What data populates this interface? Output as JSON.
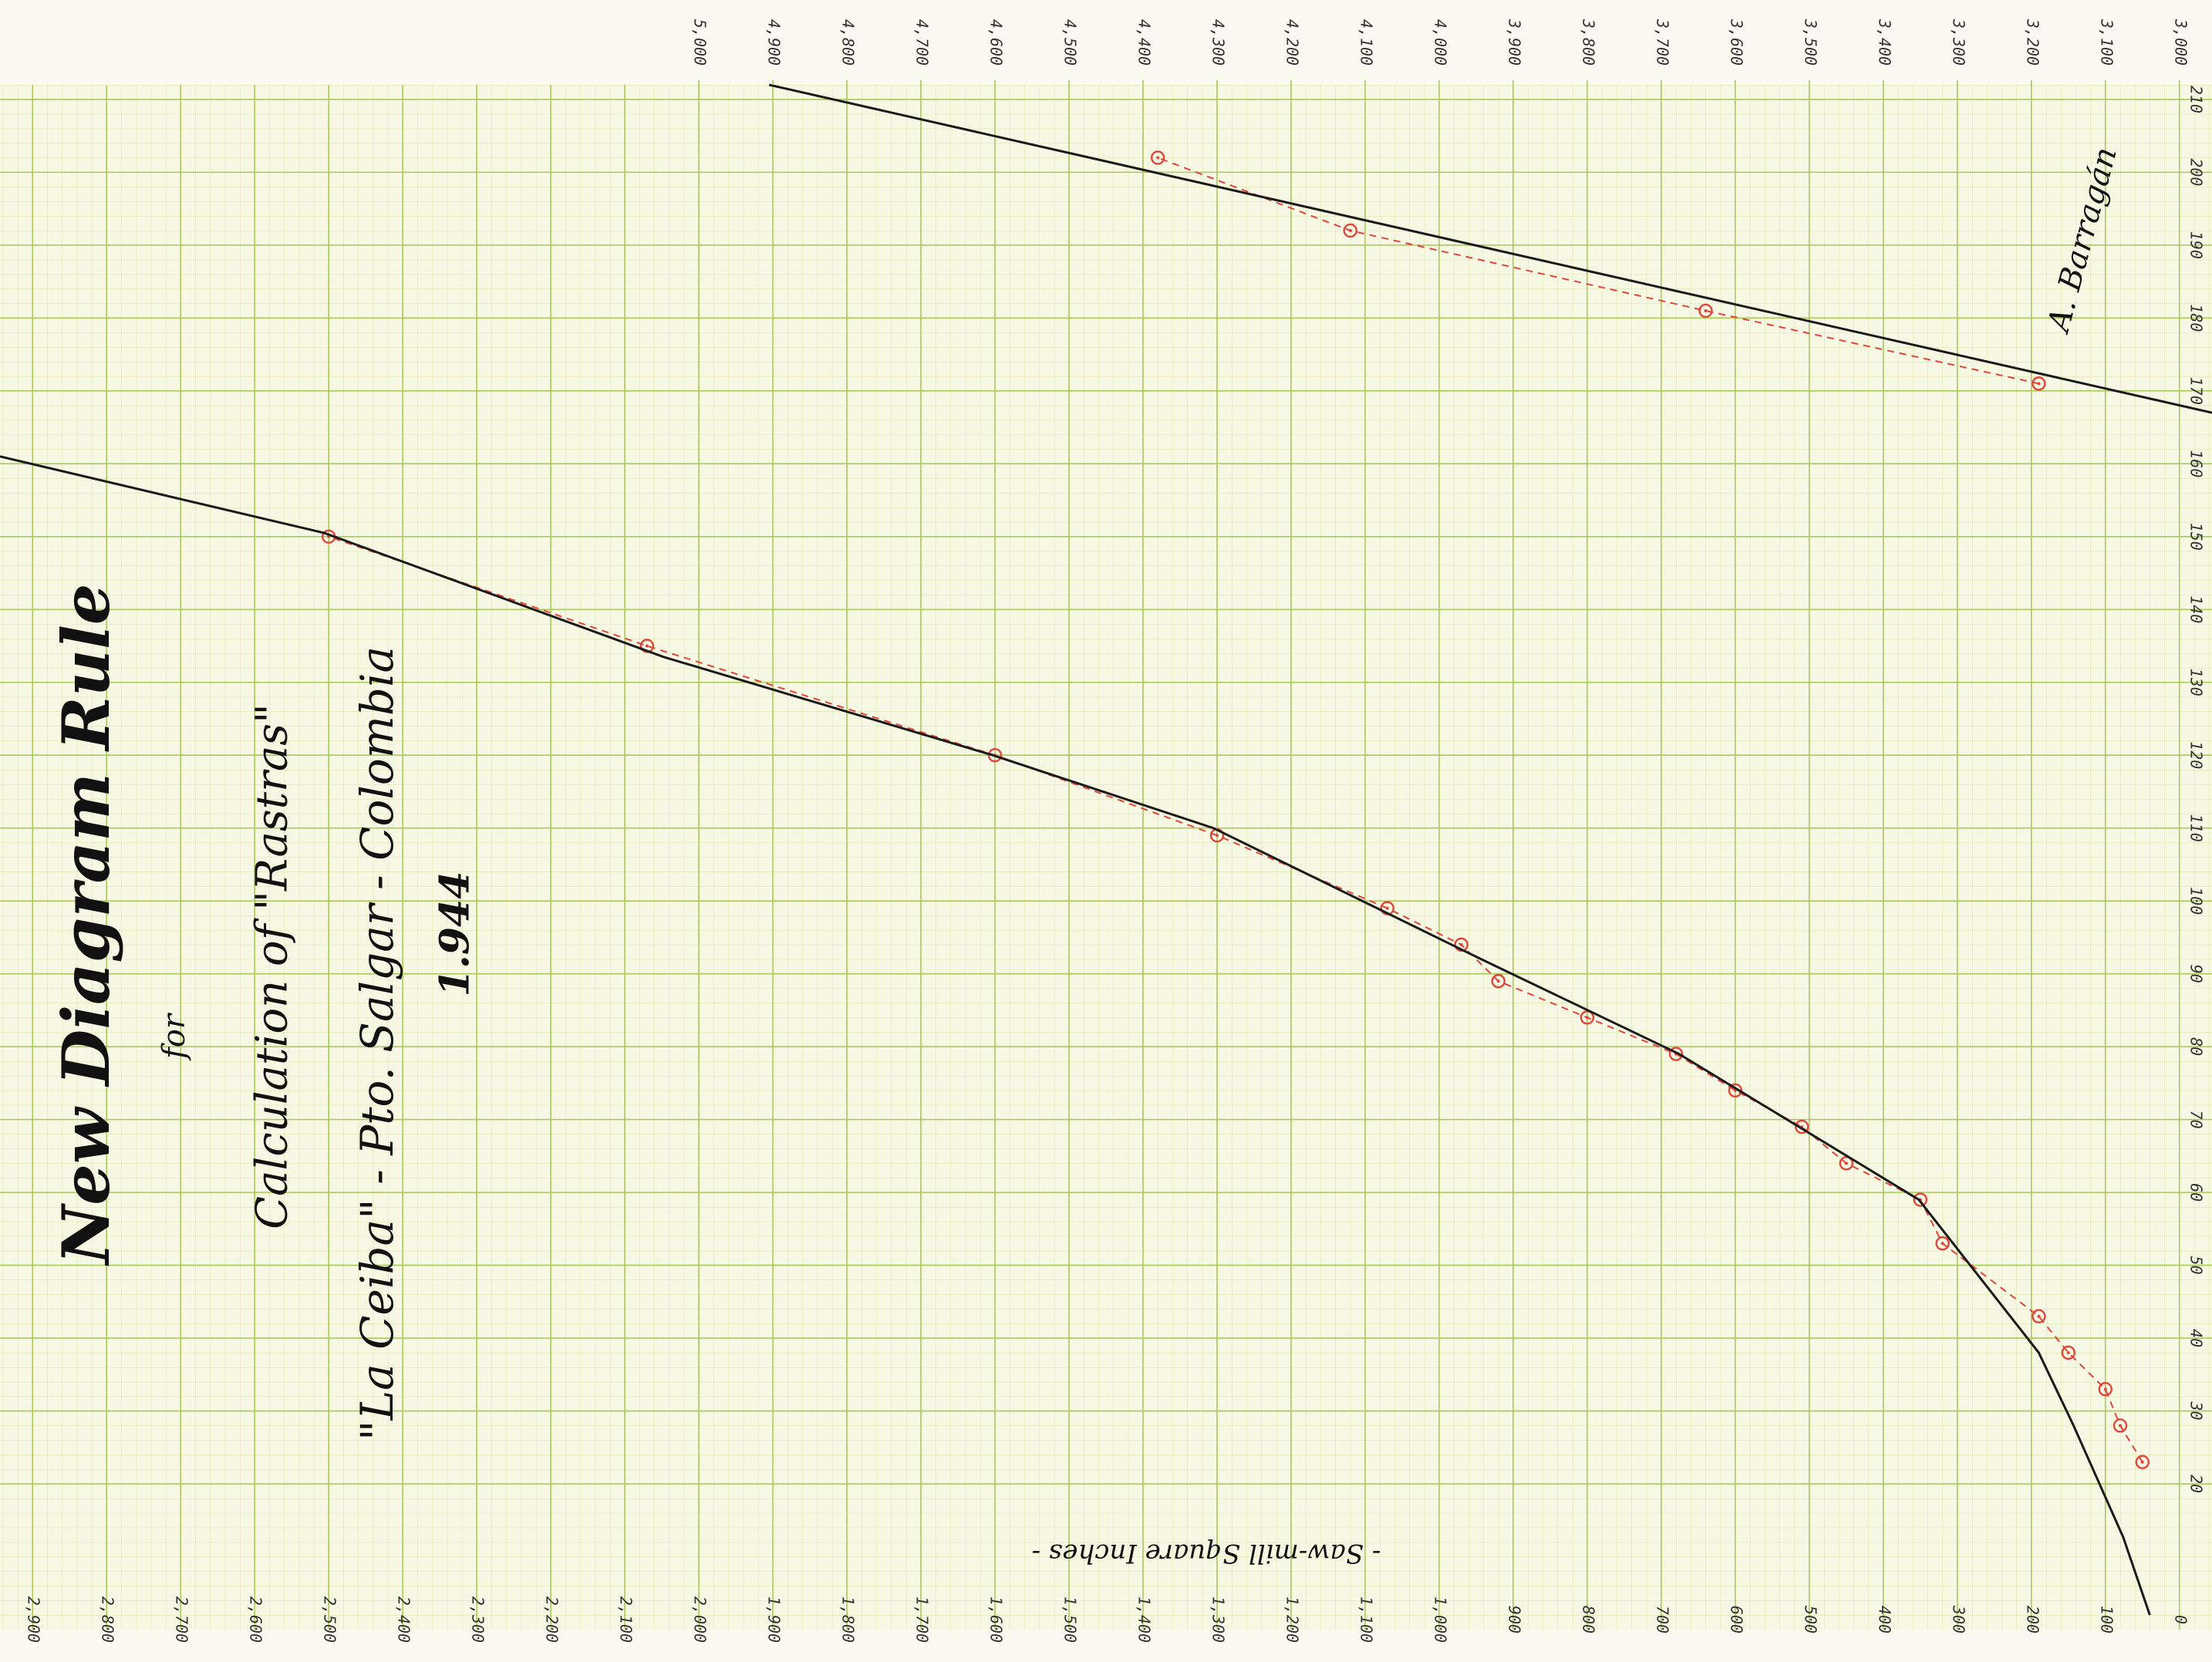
{
  "chart_data": {
    "type": "line",
    "title": "New Diagram Rule",
    "title_connector": "for",
    "subtitle": "Calculation of \"Rastras\"",
    "location": "\"La Ceiba\" - Pto. Salgar - Colombia",
    "year": "1.944",
    "xlabel": "- Saw-mill Square Inches -",
    "signature": "A. Barragán",
    "xlim": [
      2944,
      -44
    ],
    "x2lim": [
      5944,
      2956
    ],
    "ylim": [
      0,
      212
    ],
    "grid": true,
    "xticks": [
      0,
      100,
      200,
      300,
      400,
      500,
      600,
      700,
      800,
      900,
      {
        "value": 1000,
        "label": "1,000"
      },
      {
        "value": 1100,
        "label": "1,100"
      },
      {
        "value": 1200,
        "label": "1,200"
      },
      {
        "value": 1300,
        "label": "1,300"
      },
      {
        "value": 1400,
        "label": "1,400"
      },
      {
        "value": 1500,
        "label": "1,500"
      },
      {
        "value": 1600,
        "label": "1,600"
      },
      {
        "value": 1700,
        "label": "1,700"
      },
      {
        "value": 1800,
        "label": "1,800"
      },
      {
        "value": 1900,
        "label": "1,900"
      },
      {
        "value": 2000,
        "label": "2,000"
      },
      {
        "value": 2100,
        "label": "2,100"
      },
      {
        "value": 2200,
        "label": "2,200"
      },
      {
        "value": 2300,
        "label": "2,300"
      },
      {
        "value": 2400,
        "label": "2,400"
      },
      {
        "value": 2500,
        "label": "2,500"
      },
      {
        "value": 2600,
        "label": "2,600"
      },
      {
        "value": 2700,
        "label": "2,700"
      },
      {
        "value": 2800,
        "label": "2,800"
      },
      {
        "value": 2900,
        "label": "2,900"
      }
    ],
    "x2ticks": [
      {
        "value": 3000,
        "label": "3,000"
      },
      {
        "value": 3100,
        "label": "3,100"
      },
      {
        "value": 3200,
        "label": "3,200"
      },
      {
        "value": 3300,
        "label": "3,300"
      },
      {
        "value": 3400,
        "label": "3,400"
      },
      {
        "value": 3500,
        "label": "3,500"
      },
      {
        "value": 3600,
        "label": "3,600"
      },
      {
        "value": 3700,
        "label": "3,700"
      },
      {
        "value": 3800,
        "label": "3,800"
      },
      {
        "value": 3900,
        "label": "3,900"
      },
      {
        "value": 4000,
        "label": "4,000"
      },
      {
        "value": 4100,
        "label": "4,100"
      },
      {
        "value": 4200,
        "label": "4,200"
      },
      {
        "value": 4300,
        "label": "4,300"
      },
      {
        "value": 4400,
        "label": "4,400"
      },
      {
        "value": 4500,
        "label": "4,500"
      },
      {
        "value": 4600,
        "label": "4,600"
      },
      {
        "value": 4700,
        "label": "4,700"
      },
      {
        "value": 4800,
        "label": "4,800"
      },
      {
        "value": 4900,
        "label": "4,900"
      },
      {
        "value": 5000,
        "label": "5,000"
      }
    ],
    "yticks": [
      20,
      30,
      40,
      50,
      60,
      70,
      80,
      90,
      100,
      110,
      120,
      130,
      140,
      150,
      160,
      170,
      180,
      190,
      200,
      210
    ],
    "series": [
      {
        "color": "#e0453c",
        "dashed": true,
        "markers": true,
        "xaxis": "x",
        "x": [
          50,
          80,
          100,
          150,
          190,
          320,
          350,
          450,
          510,
          600,
          680,
          800,
          920,
          970,
          1070,
          1300,
          1600,
          2070,
          2500
        ],
        "values": [
          23,
          28,
          33,
          38,
          43,
          53,
          59,
          64,
          69,
          74,
          79,
          84,
          89,
          94,
          99,
          109,
          120,
          135,
          150
        ]
      },
      {
        "color": "#1a1a1a",
        "dashed": false,
        "markers": false,
        "xaxis": "x",
        "x": [
          40,
          76,
          143,
          190,
          352,
          676,
          943,
          1305,
          1603,
          2048,
          2506,
          2944
        ],
        "values": [
          2,
          12.7,
          28,
          38,
          59,
          79,
          92,
          110,
          120,
          133.5,
          150.5,
          161
        ]
      },
      {
        "color": "#e0453c",
        "dashed": true,
        "markers": true,
        "xaxis": "x2",
        "x": [
          3190,
          3640,
          4120,
          4380
        ],
        "values": [
          171,
          181,
          192,
          202
        ]
      },
      {
        "color": "#1a1a1a",
        "dashed": false,
        "markers": false,
        "xaxis": "x2",
        "x": [
          4905,
          2956
        ],
        "values": [
          212,
          167
        ]
      }
    ]
  }
}
